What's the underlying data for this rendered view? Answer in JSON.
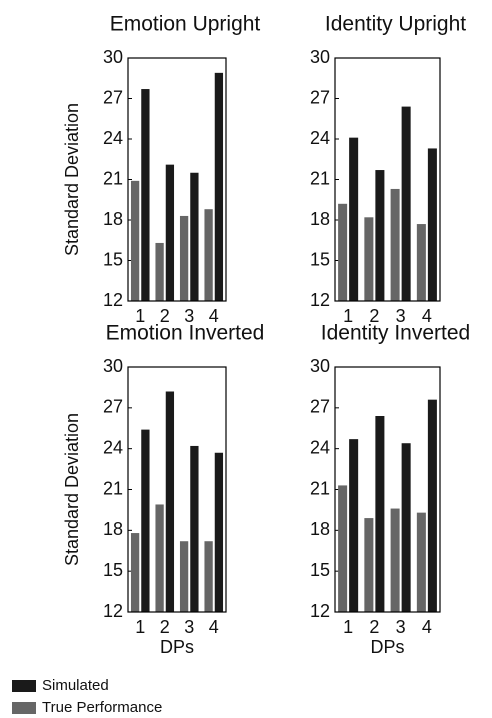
{
  "chart_data": [
    {
      "type": "bar",
      "title": "Emotion Upright",
      "ylabel": "Standard Deviation",
      "categories": [
        "1",
        "2",
        "3",
        "4"
      ],
      "series": [
        {
          "name": "True Performance",
          "color": "#666666",
          "values": [
            20.9,
            16.3,
            18.3,
            18.8
          ]
        },
        {
          "name": "Simulated",
          "color": "#1a1a1a",
          "values": [
            27.7,
            22.1,
            21.5,
            28.9
          ]
        }
      ],
      "ylim": [
        12,
        30
      ],
      "yticks": [
        12,
        15,
        18,
        21,
        24,
        27,
        30
      ]
    },
    {
      "type": "bar",
      "title": "Identity Upright",
      "categories": [
        "1",
        "2",
        "3",
        "4"
      ],
      "series": [
        {
          "name": "True Performance",
          "color": "#666666",
          "values": [
            19.2,
            18.2,
            20.3,
            17.7
          ]
        },
        {
          "name": "Simulated",
          "color": "#1a1a1a",
          "values": [
            24.1,
            21.7,
            26.4,
            23.3
          ]
        }
      ],
      "ylim": [
        12,
        30
      ],
      "yticks": [
        12,
        15,
        18,
        21,
        24,
        27,
        30
      ]
    },
    {
      "type": "bar",
      "title": "Emotion Inverted",
      "ylabel": "Standard Deviation",
      "xlabel": "DPs",
      "categories": [
        "1",
        "2",
        "3",
        "4"
      ],
      "series": [
        {
          "name": "True Performance",
          "color": "#666666",
          "values": [
            17.8,
            19.9,
            17.2,
            17.2
          ]
        },
        {
          "name": "Simulated",
          "color": "#1a1a1a",
          "values": [
            25.4,
            28.2,
            24.2,
            23.7
          ]
        }
      ],
      "ylim": [
        12,
        30
      ],
      "yticks": [
        12,
        15,
        18,
        21,
        24,
        27,
        30
      ]
    },
    {
      "type": "bar",
      "title": "Identity Inverted",
      "xlabel": "DPs",
      "categories": [
        "1",
        "2",
        "3",
        "4"
      ],
      "series": [
        {
          "name": "True Performance",
          "color": "#666666",
          "values": [
            21.3,
            18.9,
            19.6,
            19.3
          ]
        },
        {
          "name": "Simulated",
          "color": "#1a1a1a",
          "values": [
            24.7,
            26.4,
            24.4,
            27.6
          ]
        }
      ],
      "ylim": [
        12,
        30
      ],
      "yticks": [
        12,
        15,
        18,
        21,
        24,
        27,
        30
      ]
    }
  ]
}
